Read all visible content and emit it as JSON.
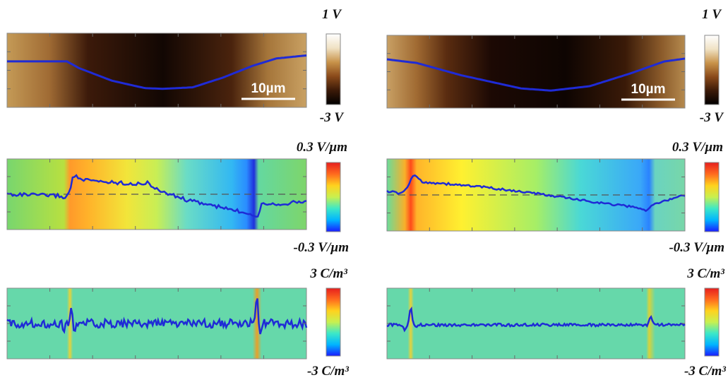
{
  "colors": {
    "curve": "#1f2bd6",
    "frame": "#8a8a8a",
    "dashed": "#555555",
    "scale_bar": "#ffffff"
  },
  "colormaps": {
    "potential": [
      "#000000",
      "#3b1a08",
      "#8a4a1a",
      "#c8934a",
      "#f0e2c4",
      "#ffffff"
    ],
    "jet": [
      "#1a1aff",
      "#00b4ff",
      "#3ce8c8",
      "#c8f050",
      "#ffd21e",
      "#ff6a1e",
      "#e61e1e"
    ]
  },
  "panels": {
    "left": {
      "potential": {
        "top_label": "1 V",
        "bottom_label": "-3 V",
        "scale_text": "10µm",
        "map_stops": [
          [
            0,
            "#c49a56"
          ],
          [
            0.14,
            "#a06b34"
          ],
          [
            0.27,
            "#3c1a0a"
          ],
          [
            0.52,
            "#120703"
          ],
          [
            0.75,
            "#4a230d"
          ],
          [
            0.87,
            "#a5753a"
          ],
          [
            1,
            "#c9a163"
          ]
        ],
        "curve": [
          [
            0,
            0.38
          ],
          [
            0.2,
            0.38
          ],
          [
            0.24,
            0.47
          ],
          [
            0.35,
            0.64
          ],
          [
            0.46,
            0.74
          ],
          [
            0.52,
            0.75
          ],
          [
            0.62,
            0.73
          ],
          [
            0.72,
            0.6
          ],
          [
            0.82,
            0.44
          ],
          [
            0.9,
            0.34
          ],
          [
            1,
            0.3
          ]
        ]
      },
      "field": {
        "top_label": "0.3 V/µm",
        "bottom_label": "-0.3 V/µm",
        "map_stops": [
          [
            0,
            "#78d66e"
          ],
          [
            0.19,
            "#b8e040"
          ],
          [
            0.21,
            "#ff9a2a"
          ],
          [
            0.27,
            "#ffb22a"
          ],
          [
            0.4,
            "#f2e53a"
          ],
          [
            0.5,
            "#c8ee55"
          ],
          [
            0.6,
            "#6adcc6"
          ],
          [
            0.75,
            "#33b8f2"
          ],
          [
            0.8,
            "#2a8cff"
          ],
          [
            0.825,
            "#2030dc"
          ],
          [
            0.84,
            "#64d8a0"
          ],
          [
            1,
            "#7ed56a"
          ]
        ],
        "curve": [
          [
            0,
            0.5
          ],
          [
            0.17,
            0.52
          ],
          [
            0.19,
            0.55
          ],
          [
            0.21,
            0.48
          ],
          [
            0.22,
            0.22
          ],
          [
            0.25,
            0.3
          ],
          [
            0.45,
            0.36
          ],
          [
            0.47,
            0.32
          ],
          [
            0.49,
            0.42
          ],
          [
            0.6,
            0.58
          ],
          [
            0.75,
            0.72
          ],
          [
            0.82,
            0.78
          ],
          [
            0.84,
            0.82
          ],
          [
            0.85,
            0.62
          ],
          [
            0.9,
            0.64
          ],
          [
            1,
            0.6
          ]
        ]
      },
      "charge": {
        "top_label": "3 C/m³",
        "bottom_label": "-3 C/m³",
        "map_stops": [
          [
            0,
            "#66d8aa"
          ],
          [
            0.2,
            "#66d8aa"
          ],
          [
            0.21,
            "#e8d23a"
          ],
          [
            0.22,
            "#66d8aa"
          ],
          [
            0.82,
            "#66d8aa"
          ],
          [
            0.835,
            "#e8a02a"
          ],
          [
            0.85,
            "#66d8aa"
          ],
          [
            1,
            "#66d8aa"
          ]
        ],
        "spikes": [
          [
            0.215,
            0.27
          ],
          [
            0.835,
            0.1
          ]
        ],
        "dips": [
          [
            0.19,
            0.62
          ],
          [
            0.225,
            0.62
          ],
          [
            0.845,
            0.65
          ]
        ],
        "curve_noise": 0.06,
        "curve_base": 0.5
      }
    },
    "right": {
      "potential": {
        "top_label": "1 V",
        "bottom_label": "-3 V",
        "scale_text": "10µm",
        "map_stops": [
          [
            0,
            "#c8a064"
          ],
          [
            0.1,
            "#a06a32"
          ],
          [
            0.2,
            "#5a2c10"
          ],
          [
            0.35,
            "#1c0904"
          ],
          [
            0.6,
            "#0e0502"
          ],
          [
            0.8,
            "#3a1a08"
          ],
          [
            0.92,
            "#8a5a2a"
          ],
          [
            1,
            "#b58a4e"
          ]
        ],
        "curve": [
          [
            0,
            0.33
          ],
          [
            0.1,
            0.38
          ],
          [
            0.25,
            0.55
          ],
          [
            0.45,
            0.73
          ],
          [
            0.55,
            0.76
          ],
          [
            0.68,
            0.7
          ],
          [
            0.82,
            0.52
          ],
          [
            0.93,
            0.36
          ],
          [
            1,
            0.32
          ]
        ]
      },
      "field": {
        "top_label": "0.3 V/µm",
        "bottom_label": "-0.3 V/µm",
        "map_stops": [
          [
            0,
            "#6adc9a"
          ],
          [
            0.06,
            "#f8b02a"
          ],
          [
            0.08,
            "#ff4a1a"
          ],
          [
            0.1,
            "#ffb42a"
          ],
          [
            0.25,
            "#fff030"
          ],
          [
            0.5,
            "#a6ee66"
          ],
          [
            0.65,
            "#4ad8d6"
          ],
          [
            0.85,
            "#3aa8f8"
          ],
          [
            0.88,
            "#2a82ff"
          ],
          [
            0.9,
            "#6ad4c0"
          ],
          [
            1,
            "#78d6a8"
          ]
        ],
        "curve": [
          [
            0,
            0.45
          ],
          [
            0.05,
            0.48
          ],
          [
            0.07,
            0.38
          ],
          [
            0.09,
            0.22
          ],
          [
            0.12,
            0.32
          ],
          [
            0.3,
            0.38
          ],
          [
            0.5,
            0.48
          ],
          [
            0.7,
            0.6
          ],
          [
            0.85,
            0.68
          ],
          [
            0.87,
            0.72
          ],
          [
            0.9,
            0.62
          ],
          [
            1,
            0.5
          ]
        ]
      },
      "charge": {
        "top_label": "3 C/m³",
        "bottom_label": "-3 C/m³",
        "map_stops": [
          [
            0,
            "#66d8aa"
          ],
          [
            0.07,
            "#66d8aa"
          ],
          [
            0.08,
            "#e8d23a"
          ],
          [
            0.09,
            "#66d8aa"
          ],
          [
            0.87,
            "#66d8aa"
          ],
          [
            0.88,
            "#d8d23a"
          ],
          [
            0.9,
            "#66d8aa"
          ],
          [
            1,
            "#66d8aa"
          ]
        ],
        "spikes": [
          [
            0.08,
            0.27
          ],
          [
            0.885,
            0.4
          ]
        ],
        "dips": [
          [
            0.06,
            0.6
          ],
          [
            0.1,
            0.55
          ]
        ],
        "curve_noise": 0.02,
        "curve_base": 0.52
      }
    }
  }
}
